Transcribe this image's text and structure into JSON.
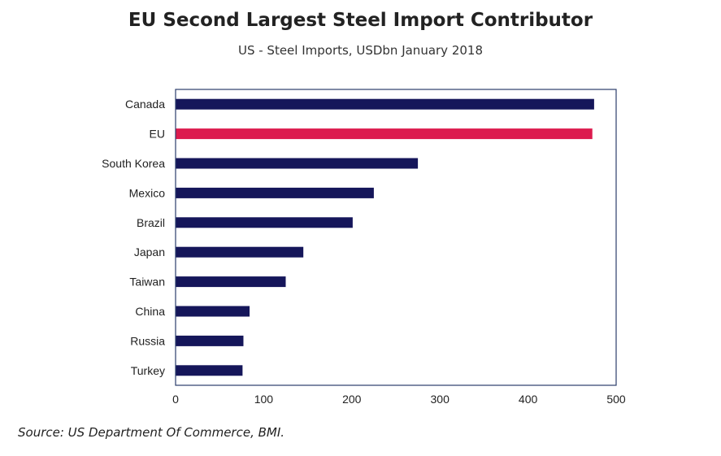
{
  "chart_data": {
    "type": "bar",
    "orientation": "horizontal",
    "title": "EU Second Largest Steel Import Contributor",
    "subtitle": "US - Steel Imports, USDbn January 2018",
    "categories": [
      "Canada",
      "EU",
      "South Korea",
      "Mexico",
      "Brazil",
      "Japan",
      "Taiwan",
      "China",
      "Russia",
      "Turkey"
    ],
    "values": [
      475,
      473,
      275,
      225,
      201,
      145,
      125,
      84,
      77,
      76
    ],
    "highlight": "EU",
    "xlim": [
      0,
      500
    ],
    "xticks": [
      0,
      100,
      200,
      300,
      400,
      500
    ],
    "grid": false,
    "colors": {
      "bar": "#15165a",
      "highlight": "#dc1b4e",
      "frame": "#2b3d6b"
    },
    "source": "Source: US Department Of Commerce, BMI."
  }
}
